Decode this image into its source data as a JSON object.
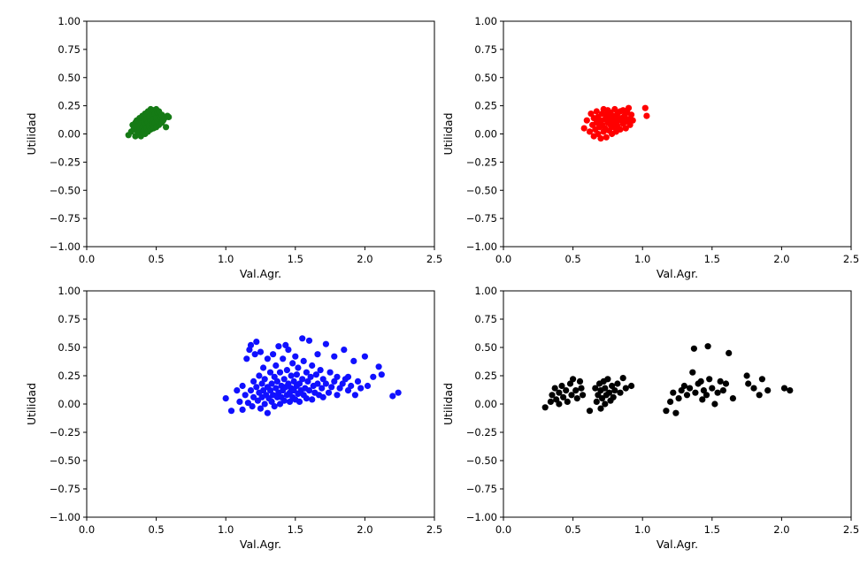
{
  "figure": {
    "rows": 2,
    "cols": 2
  },
  "chart_data": [
    {
      "type": "scatter",
      "title": "",
      "xlabel": "Val.Agr.",
      "ylabel": "Utilidad",
      "xlim": [
        0,
        2.5
      ],
      "ylim": [
        -1,
        1
      ],
      "xticks": [
        "0.0",
        "0.5",
        "1.0",
        "1.5",
        "2.0",
        "2.5"
      ],
      "yticks": [
        "1.00",
        "0.75",
        "0.50",
        "0.25",
        "0.00",
        "−0.25",
        "−0.50",
        "−0.75",
        "−1.00"
      ],
      "grid": false,
      "color": "#157a15",
      "points": [
        [
          0.3,
          -0.01
        ],
        [
          0.32,
          0.02
        ],
        [
          0.33,
          0.08
        ],
        [
          0.34,
          0.05
        ],
        [
          0.35,
          0.1
        ],
        [
          0.35,
          -0.02
        ],
        [
          0.36,
          0.03
        ],
        [
          0.36,
          0.12
        ],
        [
          0.37,
          0.07
        ],
        [
          0.37,
          0.0
        ],
        [
          0.38,
          0.14
        ],
        [
          0.38,
          0.04
        ],
        [
          0.39,
          0.09
        ],
        [
          0.39,
          -0.02
        ],
        [
          0.4,
          0.16
        ],
        [
          0.4,
          0.06
        ],
        [
          0.4,
          0.01
        ],
        [
          0.41,
          0.11
        ],
        [
          0.41,
          0.03
        ],
        [
          0.42,
          0.18
        ],
        [
          0.42,
          0.08
        ],
        [
          0.42,
          0.0
        ],
        [
          0.43,
          0.13
        ],
        [
          0.43,
          0.05
        ],
        [
          0.44,
          0.2
        ],
        [
          0.44,
          0.1
        ],
        [
          0.44,
          0.02
        ],
        [
          0.45,
          0.15
        ],
        [
          0.45,
          0.07
        ],
        [
          0.46,
          0.22
        ],
        [
          0.46,
          0.12
        ],
        [
          0.46,
          0.04
        ],
        [
          0.47,
          0.17
        ],
        [
          0.47,
          0.09
        ],
        [
          0.48,
          0.21
        ],
        [
          0.48,
          0.13
        ],
        [
          0.48,
          0.05
        ],
        [
          0.49,
          0.18
        ],
        [
          0.49,
          0.1
        ],
        [
          0.5,
          0.22
        ],
        [
          0.5,
          0.14
        ],
        [
          0.5,
          0.06
        ],
        [
          0.51,
          0.19
        ],
        [
          0.51,
          0.11
        ],
        [
          0.52,
          0.2
        ],
        [
          0.52,
          0.08
        ],
        [
          0.53,
          0.15
        ],
        [
          0.54,
          0.17
        ],
        [
          0.54,
          0.1
        ],
        [
          0.55,
          0.12
        ],
        [
          0.56,
          0.14
        ],
        [
          0.57,
          0.06
        ],
        [
          0.58,
          0.16
        ],
        [
          0.59,
          0.15
        ]
      ]
    },
    {
      "type": "scatter",
      "title": "",
      "xlabel": "Val.Agr.",
      "ylabel": "Utilidad",
      "xlim": [
        0,
        2.5
      ],
      "ylim": [
        -1,
        1
      ],
      "xticks": [
        "0.0",
        "0.5",
        "1.0",
        "1.5",
        "2.0",
        "2.5"
      ],
      "yticks": [
        "1.00",
        "0.75",
        "0.50",
        "0.25",
        "0.00",
        "−0.25",
        "−0.50",
        "−0.75",
        "−1.00"
      ],
      "grid": false,
      "color": "#ff0000",
      "points": [
        [
          0.58,
          0.05
        ],
        [
          0.6,
          0.12
        ],
        [
          0.62,
          0.02
        ],
        [
          0.63,
          0.18
        ],
        [
          0.64,
          0.08
        ],
        [
          0.65,
          -0.02
        ],
        [
          0.65,
          0.14
        ],
        [
          0.66,
          0.04
        ],
        [
          0.67,
          0.1
        ],
        [
          0.67,
          0.2
        ],
        [
          0.68,
          0.0
        ],
        [
          0.68,
          0.15
        ],
        [
          0.69,
          0.06
        ],
        [
          0.7,
          0.12
        ],
        [
          0.7,
          -0.04
        ],
        [
          0.71,
          0.18
        ],
        [
          0.71,
          0.08
        ],
        [
          0.72,
          0.02
        ],
        [
          0.72,
          0.22
        ],
        [
          0.73,
          0.13
        ],
        [
          0.73,
          0.05
        ],
        [
          0.74,
          0.17
        ],
        [
          0.74,
          -0.03
        ],
        [
          0.75,
          0.1
        ],
        [
          0.75,
          0.21
        ],
        [
          0.76,
          0.03
        ],
        [
          0.76,
          0.14
        ],
        [
          0.77,
          0.08
        ],
        [
          0.77,
          0.19
        ],
        [
          0.78,
          0.0
        ],
        [
          0.78,
          0.12
        ],
        [
          0.79,
          0.16
        ],
        [
          0.79,
          0.06
        ],
        [
          0.8,
          0.22
        ],
        [
          0.8,
          0.1
        ],
        [
          0.81,
          0.02
        ],
        [
          0.81,
          0.15
        ],
        [
          0.82,
          0.18
        ],
        [
          0.82,
          0.07
        ],
        [
          0.83,
          0.12
        ],
        [
          0.84,
          0.2
        ],
        [
          0.84,
          0.04
        ],
        [
          0.85,
          0.14
        ],
        [
          0.86,
          0.09
        ],
        [
          0.86,
          0.21
        ],
        [
          0.87,
          0.16
        ],
        [
          0.88,
          0.11
        ],
        [
          0.88,
          0.05
        ],
        [
          0.89,
          0.19
        ],
        [
          0.9,
          0.13
        ],
        [
          0.9,
          0.23
        ],
        [
          0.91,
          0.08
        ],
        [
          0.92,
          0.17
        ],
        [
          0.93,
          0.12
        ],
        [
          1.02,
          0.23
        ],
        [
          1.03,
          0.16
        ]
      ]
    },
    {
      "type": "scatter",
      "title": "",
      "xlabel": "Val.Agr.",
      "ylabel": "Utilidad",
      "xlim": [
        0,
        2.5
      ],
      "ylim": [
        -1,
        1
      ],
      "xticks": [
        "0.0",
        "0.5",
        "1.0",
        "1.5",
        "2.0",
        "2.5"
      ],
      "yticks": [
        "1.00",
        "0.75",
        "0.50",
        "0.25",
        "0.00",
        "−0.25",
        "−0.50",
        "−0.75",
        "−1.00"
      ],
      "grid": false,
      "color": "#1010ff",
      "points": [
        [
          1.0,
          0.05
        ],
        [
          1.04,
          -0.06
        ],
        [
          1.08,
          0.12
        ],
        [
          1.1,
          0.02
        ],
        [
          1.12,
          -0.05
        ],
        [
          1.12,
          0.16
        ],
        [
          1.14,
          0.08
        ],
        [
          1.15,
          0.4
        ],
        [
          1.16,
          0.01
        ],
        [
          1.17,
          0.48
        ],
        [
          1.18,
          0.12
        ],
        [
          1.18,
          0.52
        ],
        [
          1.19,
          -0.02
        ],
        [
          1.2,
          0.2
        ],
        [
          1.2,
          0.06
        ],
        [
          1.21,
          0.44
        ],
        [
          1.22,
          0.15
        ],
        [
          1.22,
          0.55
        ],
        [
          1.23,
          0.03
        ],
        [
          1.24,
          0.1
        ],
        [
          1.24,
          0.25
        ],
        [
          1.25,
          -0.04
        ],
        [
          1.25,
          0.46
        ],
        [
          1.26,
          0.18
        ],
        [
          1.26,
          0.06
        ],
        [
          1.27,
          0.32
        ],
        [
          1.27,
          0.12
        ],
        [
          1.28,
          0.0
        ],
        [
          1.28,
          0.22
        ],
        [
          1.29,
          0.08
        ],
        [
          1.3,
          0.4
        ],
        [
          1.3,
          0.15
        ],
        [
          1.3,
          -0.08
        ],
        [
          1.31,
          0.05
        ],
        [
          1.32,
          0.28
        ],
        [
          1.32,
          0.12
        ],
        [
          1.33,
          0.02
        ],
        [
          1.33,
          0.18
        ],
        [
          1.34,
          0.44
        ],
        [
          1.34,
          0.08
        ],
        [
          1.35,
          0.24
        ],
        [
          1.35,
          -0.02
        ],
        [
          1.36,
          0.14
        ],
        [
          1.36,
          0.34
        ],
        [
          1.37,
          0.06
        ],
        [
          1.37,
          0.2
        ],
        [
          1.38,
          0.51
        ],
        [
          1.38,
          0.1
        ],
        [
          1.39,
          0.0
        ],
        [
          1.39,
          0.28
        ],
        [
          1.4,
          0.16
        ],
        [
          1.4,
          0.06
        ],
        [
          1.41,
          0.4
        ],
        [
          1.41,
          0.12
        ],
        [
          1.42,
          0.22
        ],
        [
          1.42,
          0.03
        ],
        [
          1.43,
          0.52
        ],
        [
          1.43,
          0.15
        ],
        [
          1.44,
          0.08
        ],
        [
          1.44,
          0.3
        ],
        [
          1.45,
          0.48
        ],
        [
          1.45,
          0.18
        ],
        [
          1.46,
          0.1
        ],
        [
          1.46,
          0.02
        ],
        [
          1.47,
          0.25
        ],
        [
          1.47,
          0.14
        ],
        [
          1.48,
          0.36
        ],
        [
          1.48,
          0.06
        ],
        [
          1.49,
          0.2
        ],
        [
          1.49,
          0.12
        ],
        [
          1.5,
          0.04
        ],
        [
          1.5,
          0.42
        ],
        [
          1.51,
          0.16
        ],
        [
          1.51,
          0.26
        ],
        [
          1.52,
          0.09
        ],
        [
          1.52,
          0.32
        ],
        [
          1.53,
          0.18
        ],
        [
          1.53,
          0.02
        ],
        [
          1.54,
          0.12
        ],
        [
          1.55,
          0.58
        ],
        [
          1.55,
          0.22
        ],
        [
          1.56,
          0.08
        ],
        [
          1.56,
          0.38
        ],
        [
          1.57,
          0.14
        ],
        [
          1.58,
          0.28
        ],
        [
          1.58,
          0.05
        ],
        [
          1.59,
          0.2
        ],
        [
          1.6,
          0.56
        ],
        [
          1.6,
          0.12
        ],
        [
          1.61,
          0.24
        ],
        [
          1.62,
          0.04
        ],
        [
          1.62,
          0.34
        ],
        [
          1.63,
          0.16
        ],
        [
          1.64,
          0.1
        ],
        [
          1.65,
          0.26
        ],
        [
          1.66,
          0.44
        ],
        [
          1.66,
          0.18
        ],
        [
          1.67,
          0.08
        ],
        [
          1.68,
          0.3
        ],
        [
          1.69,
          0.14
        ],
        [
          1.7,
          0.22
        ],
        [
          1.7,
          0.06
        ],
        [
          1.72,
          0.53
        ],
        [
          1.72,
          0.18
        ],
        [
          1.74,
          0.1
        ],
        [
          1.75,
          0.28
        ],
        [
          1.76,
          0.15
        ],
        [
          1.78,
          0.2
        ],
        [
          1.78,
          0.42
        ],
        [
          1.8,
          0.08
        ],
        [
          1.8,
          0.24
        ],
        [
          1.82,
          0.14
        ],
        [
          1.84,
          0.18
        ],
        [
          1.85,
          0.48
        ],
        [
          1.86,
          0.22
        ],
        [
          1.88,
          0.12
        ],
        [
          1.88,
          0.24
        ],
        [
          1.9,
          0.16
        ],
        [
          1.92,
          0.38
        ],
        [
          1.93,
          0.08
        ],
        [
          1.95,
          0.2
        ],
        [
          1.97,
          0.14
        ],
        [
          2.0,
          0.42
        ],
        [
          2.02,
          0.16
        ],
        [
          2.06,
          0.24
        ],
        [
          2.1,
          0.33
        ],
        [
          2.12,
          0.26
        ],
        [
          2.2,
          0.07
        ],
        [
          2.24,
          0.1
        ]
      ]
    },
    {
      "type": "scatter",
      "title": "",
      "xlabel": "Val.Agr.",
      "ylabel": "Utilidad",
      "xlim": [
        0,
        2.5
      ],
      "ylim": [
        -1,
        1
      ],
      "xticks": [
        "0.0",
        "0.5",
        "1.0",
        "1.5",
        "2.0",
        "2.5"
      ],
      "yticks": [
        "1.00",
        "0.75",
        "0.50",
        "0.25",
        "0.00",
        "−0.25",
        "−0.50",
        "−0.75",
        "−1.00"
      ],
      "grid": false,
      "color": "#000000",
      "points": [
        [
          0.3,
          -0.03
        ],
        [
          0.34,
          0.02
        ],
        [
          0.35,
          0.08
        ],
        [
          0.37,
          0.14
        ],
        [
          0.38,
          0.04
        ],
        [
          0.4,
          0.1
        ],
        [
          0.4,
          0.0
        ],
        [
          0.42,
          0.16
        ],
        [
          0.43,
          0.06
        ],
        [
          0.45,
          0.12
        ],
        [
          0.46,
          0.02
        ],
        [
          0.48,
          0.18
        ],
        [
          0.49,
          0.08
        ],
        [
          0.5,
          0.22
        ],
        [
          0.52,
          0.12
        ],
        [
          0.53,
          0.05
        ],
        [
          0.55,
          0.2
        ],
        [
          0.56,
          0.14
        ],
        [
          0.57,
          0.08
        ],
        [
          0.62,
          -0.06
        ],
        [
          0.66,
          0.14
        ],
        [
          0.67,
          0.02
        ],
        [
          0.68,
          0.08
        ],
        [
          0.69,
          0.18
        ],
        [
          0.7,
          -0.04
        ],
        [
          0.7,
          0.12
        ],
        [
          0.71,
          0.05
        ],
        [
          0.72,
          0.2
        ],
        [
          0.73,
          0.0
        ],
        [
          0.73,
          0.14
        ],
        [
          0.74,
          0.08
        ],
        [
          0.75,
          0.22
        ],
        [
          0.76,
          0.1
        ],
        [
          0.77,
          0.03
        ],
        [
          0.78,
          0.16
        ],
        [
          0.79,
          0.06
        ],
        [
          0.8,
          0.12
        ],
        [
          0.82,
          0.18
        ],
        [
          0.84,
          0.1
        ],
        [
          0.86,
          0.23
        ],
        [
          0.88,
          0.14
        ],
        [
          0.92,
          0.16
        ],
        [
          1.17,
          -0.06
        ],
        [
          1.2,
          0.02
        ],
        [
          1.22,
          0.1
        ],
        [
          1.24,
          -0.08
        ],
        [
          1.26,
          0.05
        ],
        [
          1.28,
          0.12
        ],
        [
          1.3,
          0.16
        ],
        [
          1.32,
          0.08
        ],
        [
          1.34,
          0.14
        ],
        [
          1.36,
          0.28
        ],
        [
          1.37,
          0.49
        ],
        [
          1.38,
          0.1
        ],
        [
          1.4,
          0.18
        ],
        [
          1.42,
          0.2
        ],
        [
          1.43,
          0.04
        ],
        [
          1.44,
          0.12
        ],
        [
          1.46,
          0.08
        ],
        [
          1.47,
          0.51
        ],
        [
          1.48,
          0.22
        ],
        [
          1.5,
          0.14
        ],
        [
          1.52,
          0.0
        ],
        [
          1.54,
          0.1
        ],
        [
          1.56,
          0.2
        ],
        [
          1.58,
          0.12
        ],
        [
          1.6,
          0.18
        ],
        [
          1.62,
          0.45
        ],
        [
          1.65,
          0.05
        ],
        [
          1.75,
          0.25
        ],
        [
          1.76,
          0.18
        ],
        [
          1.8,
          0.14
        ],
        [
          1.84,
          0.08
        ],
        [
          1.86,
          0.22
        ],
        [
          1.9,
          0.12
        ],
        [
          2.02,
          0.14
        ],
        [
          2.06,
          0.12
        ]
      ]
    }
  ]
}
